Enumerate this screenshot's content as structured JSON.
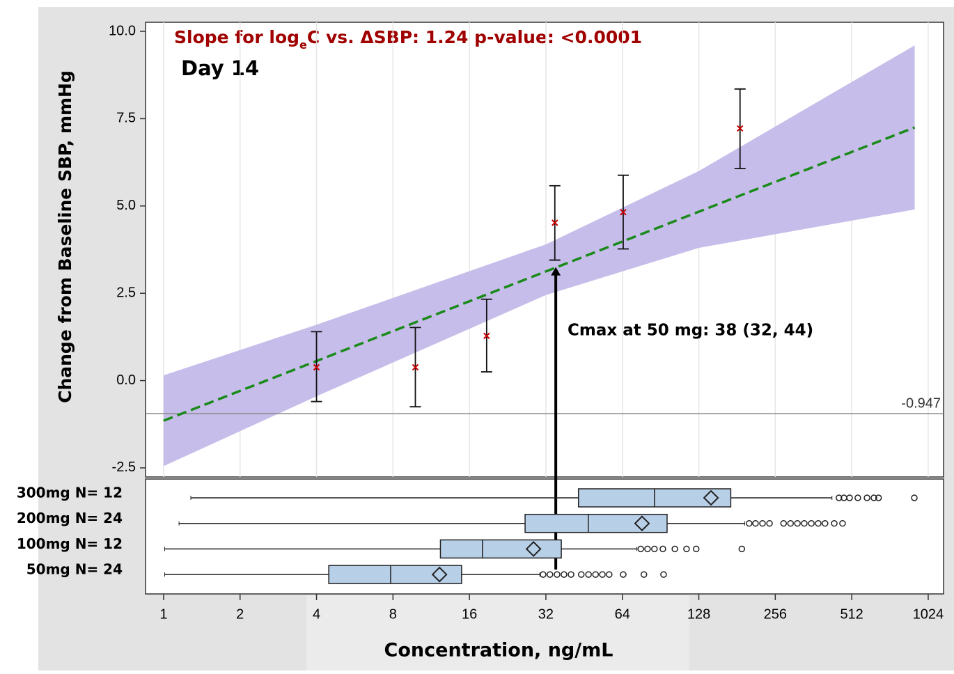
{
  "chart_data": [
    {
      "type": "line",
      "title_parts": [
        "Slope for log",
        "e",
        "C vs. ΔSBP: 1.24   p-value: <0.0001"
      ],
      "subtitle": "Day 14",
      "ylabel": "Change from Baseline  SBP,  mmHg",
      "log_x_base": 2,
      "xlim": [
        0.849,
        1177
      ],
      "ylim": [
        -2.76,
        10.26
      ],
      "yticks": [
        -2.5,
        {
          "value": 0,
          "label": "0.0"
        },
        2.5,
        {
          "value": 5,
          "label": "5.0"
        },
        7.5,
        {
          "value": 10,
          "label": "10.0"
        }
      ],
      "grid": true,
      "band": {
        "color": "#c7bdea",
        "x": [
          1,
          4,
          32,
          128,
          906
        ],
        "upper": [
          0.15,
          1.6,
          3.9,
          6.0,
          9.6
        ],
        "lower": [
          -2.45,
          -0.45,
          2.45,
          3.8,
          4.9
        ]
      },
      "fit": {
        "color": "#1a8a1a",
        "x": [
          1,
          906
        ],
        "values": [
          -1.15,
          7.25
        ]
      },
      "points": {
        "color": "#cc0000",
        "x": [
          4,
          9.8,
          18.7,
          34.7,
          64.5,
          186
        ],
        "values": [
          0.38,
          0.38,
          1.28,
          4.52,
          4.82,
          7.22
        ],
        "lower": [
          -0.6,
          -0.75,
          0.25,
          3.45,
          3.77,
          6.07
        ],
        "upper": [
          1.4,
          1.52,
          2.33,
          5.58,
          5.88,
          8.35
        ]
      },
      "reference_line": -0.947,
      "annotation": {
        "text": "Cmax at 50 mg: 38 (32, 44)",
        "arrow_x": 35,
        "arrow_y": 3.25
      }
    },
    {
      "type": "box",
      "log_x_base": 2,
      "xlim": [
        0.849,
        1177
      ],
      "xticks": [
        1,
        2,
        4,
        8,
        16,
        32,
        64,
        128,
        256,
        512,
        1024
      ],
      "xlabel": "Concentration, ng/mL",
      "color": "#b8cfe8",
      "categories": [
        "300mg N= 12",
        "200mg N= 24",
        "100mg N= 12",
        "50mg N= 24"
      ],
      "groups": [
        {
          "min": 1.28,
          "q1": 43,
          "median": 85.6,
          "q3": 171,
          "max": 428,
          "mean": 143,
          "outliers": [
            456,
            477,
            502,
            541,
            588,
            626,
            653,
            903
          ]
        },
        {
          "min": 1.15,
          "q1": 26.5,
          "median": 47,
          "q3": 96,
          "max": 194,
          "mean": 76.5,
          "outliers": [
            202,
            214,
            228,
            243,
            276,
            294,
            313,
            333,
            355,
            378,
            402,
            437,
            471
          ]
        },
        {
          "min": 1.01,
          "q1": 12.3,
          "median": 18,
          "q3": 36.8,
          "max": 73,
          "mean": 28.6,
          "outliers": [
            75.6,
            80.4,
            85.6,
            92.4,
            103,
            114.5,
            125,
            189
          ]
        },
        {
          "min": 1.01,
          "q1": 4.47,
          "median": 7.83,
          "q3": 14.9,
          "max": 30.3,
          "mean": 12.2,
          "outliers": [
            31.2,
            33.2,
            35.4,
            37.7,
            40.2,
            44.1,
            47.1,
            50.2,
            53.4,
            56.8,
            64.5,
            77.8,
            93
          ]
        }
      ]
    }
  ]
}
